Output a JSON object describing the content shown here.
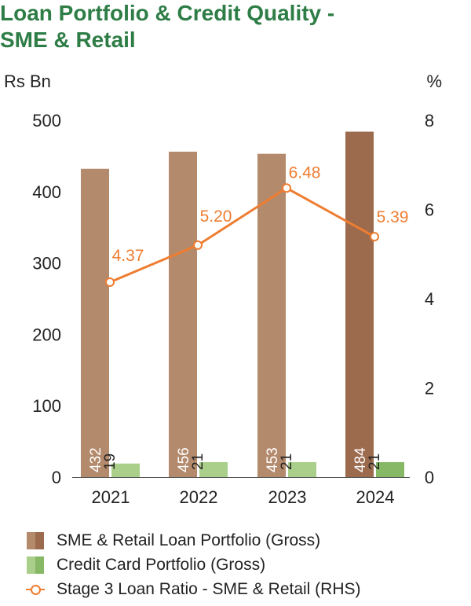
{
  "title": {
    "line1": "Loan Portfolio & Credit Quality -",
    "line2": "SME & Retail"
  },
  "chart_data": {
    "type": "bar",
    "categories": [
      "2021",
      "2022",
      "2023",
      "2024"
    ],
    "series": [
      {
        "name": "SME & Retail Loan Portfolio (Gross)",
        "type": "bar",
        "axis": "left",
        "values": [
          432,
          456,
          453,
          484
        ],
        "colors": [
          "#b48a6c",
          "#b48a6c",
          "#b48a6c",
          "#9c6b4e"
        ]
      },
      {
        "name": "Credit Card Portfolio (Gross)",
        "type": "bar",
        "axis": "left",
        "values": [
          19,
          21,
          21,
          21
        ],
        "colors": [
          "#aacf8a",
          "#aacf8a",
          "#aacf8a",
          "#86b865"
        ]
      },
      {
        "name": "Stage 3 Loan Ratio - SME & Retail (RHS)",
        "type": "line",
        "axis": "right",
        "values": [
          4.37,
          5.2,
          6.48,
          5.39
        ],
        "labels": [
          "4.37",
          "5.20",
          "6.48",
          "5.39"
        ],
        "color": "#ee7d31"
      }
    ],
    "y_left": {
      "label": "Rs Bn",
      "ylim": [
        0,
        500
      ],
      "ticks": [
        "0",
        "100",
        "200",
        "300",
        "400",
        "500"
      ]
    },
    "y_right": {
      "label": "%",
      "ylim": [
        0,
        8
      ],
      "ticks": [
        "0",
        "2",
        "4",
        "6",
        "8"
      ]
    },
    "grid": false,
    "legend_position": "bottom"
  },
  "legend": [
    {
      "label": "SME & Retail Loan Portfolio (Gross)",
      "kind": "bar",
      "color_a": "#b48a6c",
      "color_b": "#9c6b4e"
    },
    {
      "label": "Credit Card Portfolio (Gross)",
      "kind": "bar",
      "color_a": "#aacf8a",
      "color_b": "#86b865"
    },
    {
      "label": "Stage 3 Loan Ratio - SME & Retail (RHS)",
      "kind": "line",
      "color_a": "#ee7d31",
      "color_b": "#ee7d31"
    }
  ]
}
